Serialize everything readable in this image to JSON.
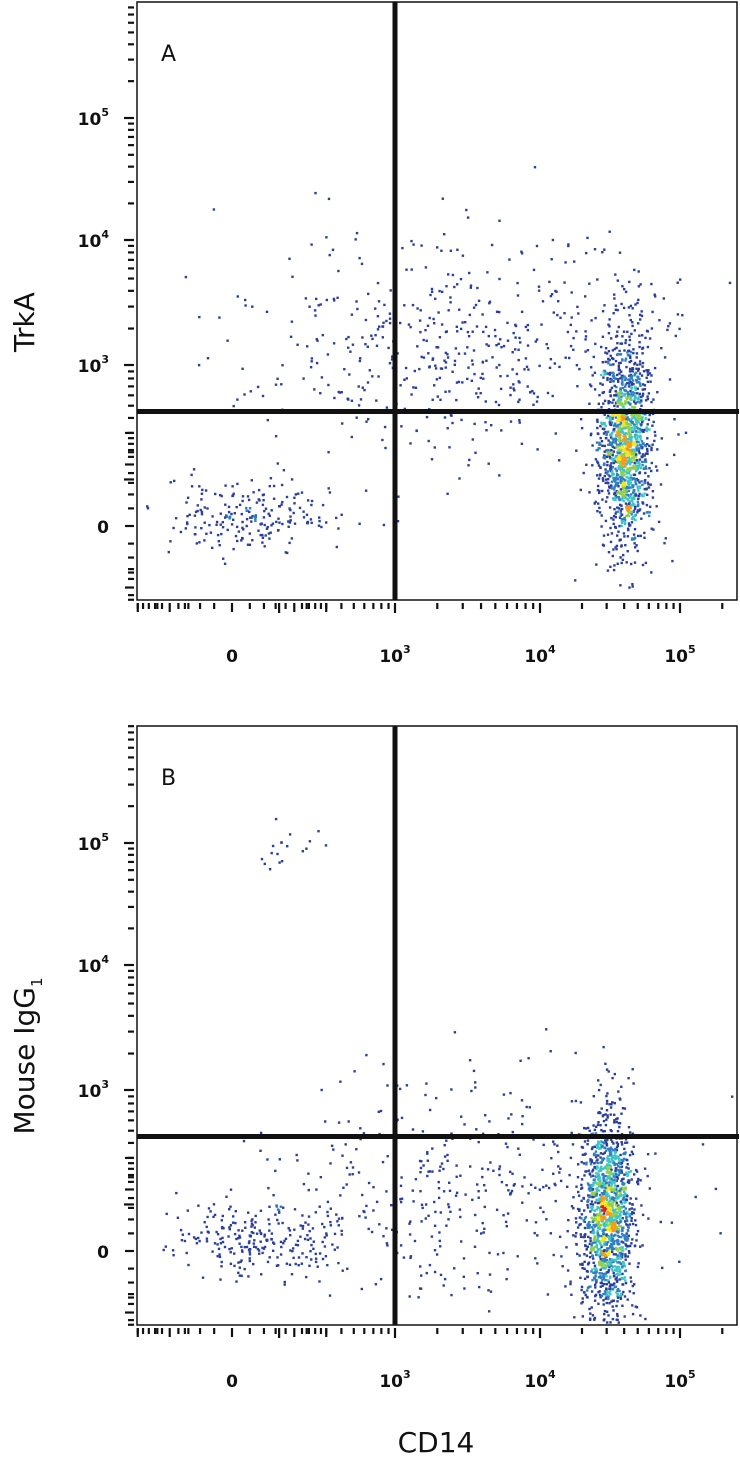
{
  "chart_data": [
    {
      "type": "scatter",
      "panel": "A",
      "xlabel": "CD14",
      "ylabel": "TrkA",
      "x_scale": "biexponential",
      "y_scale": "biexponential",
      "x_ticks": [
        {
          "base": "0",
          "exp": ""
        },
        {
          "base": "10",
          "exp": "3"
        },
        {
          "base": "10",
          "exp": "4"
        },
        {
          "base": "10",
          "exp": "5"
        }
      ],
      "y_ticks": [
        {
          "base": "0",
          "exp": ""
        },
        {
          "base": "10",
          "exp": "3"
        },
        {
          "base": "10",
          "exp": "4"
        },
        {
          "base": "10",
          "exp": "5"
        }
      ],
      "quadrant_gate": {
        "x": 1000,
        "y": 450
      },
      "populations": [
        {
          "x_center": 40000,
          "y_center": 250,
          "n": 1500,
          "note": "dense CD14+ cluster"
        },
        {
          "x_center": 3000,
          "y_center": 1500,
          "n": 520,
          "note": "sparse TrkA+ spread"
        },
        {
          "x_center": 30,
          "y_center": 20,
          "n": 220,
          "note": "low events"
        }
      ],
      "grid": false,
      "density_colormap": [
        "#2b3f9a",
        "#2f7fc1",
        "#3fc5c8",
        "#8fd14f",
        "#f5e61a",
        "#f39b1c",
        "#e3201c"
      ]
    },
    {
      "type": "scatter",
      "panel": "B",
      "xlabel": "CD14",
      "ylabel": "Mouse IgG",
      "ylabel_sub": "1",
      "x_scale": "biexponential",
      "y_scale": "biexponential",
      "x_ticks": [
        {
          "base": "0",
          "exp": ""
        },
        {
          "base": "10",
          "exp": "3"
        },
        {
          "base": "10",
          "exp": "4"
        },
        {
          "base": "10",
          "exp": "5"
        }
      ],
      "y_ticks": [
        {
          "base": "0",
          "exp": ""
        },
        {
          "base": "10",
          "exp": "3"
        },
        {
          "base": "10",
          "exp": "4"
        },
        {
          "base": "10",
          "exp": "5"
        }
      ],
      "quadrant_gate": {
        "x": 1000,
        "y": 450
      },
      "populations": [
        {
          "x_center": 30000,
          "y_center": 60,
          "n": 1500,
          "note": "dense CD14+ cluster"
        },
        {
          "x_center": 3000,
          "y_center": 150,
          "n": 420,
          "note": "sparse spread"
        },
        {
          "x_center": 30,
          "y_center": 20,
          "n": 230,
          "note": "low events"
        },
        {
          "x_center": 120,
          "y_center": 100000,
          "n": 18,
          "note": "high outliers"
        }
      ],
      "grid": false,
      "density_colormap": [
        "#2b3f9a",
        "#2f7fc1",
        "#3fc5c8",
        "#8fd14f",
        "#f5e61a",
        "#f39b1c",
        "#e3201c"
      ]
    }
  ]
}
